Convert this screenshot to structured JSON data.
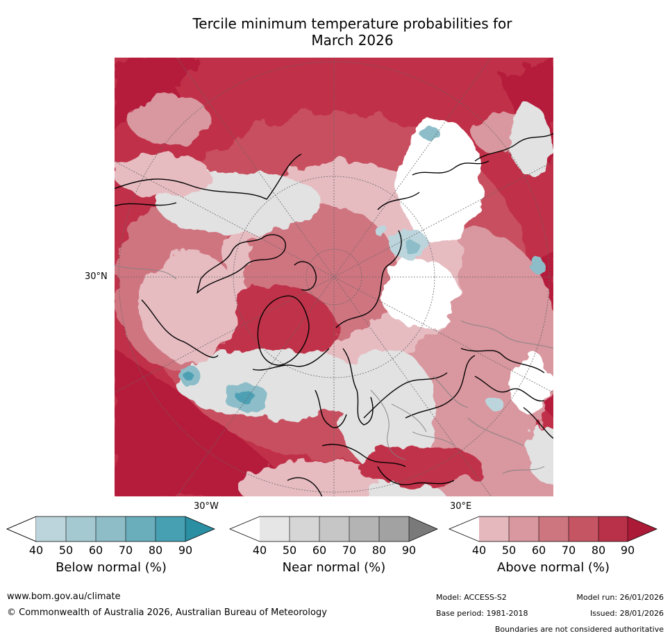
{
  "title": {
    "line1": "Tercile minimum temperature probabilities for",
    "line2": "March 2026"
  },
  "map": {
    "projection": "north-polar-stereographic",
    "lat_label": "30°N",
    "lon_labels": {
      "west": "30°W",
      "east": "30°E"
    },
    "colors": {
      "above_90": "#b51f3a",
      "above_80": "#c03048",
      "above_70": "#c8505e",
      "above_60": "#cf7580",
      "above_50": "#d9979f",
      "above_40": "#e6bcc1",
      "near": "#e2e2e2",
      "near_50": "#d8d8d8",
      "below_40": "#bcd5dc",
      "below_60": "#8cbdc8",
      "below_80": "#4ea0b3",
      "coastline": "#000000",
      "borders": "#808080",
      "gridlines": "#666666"
    }
  },
  "colorbars": [
    {
      "label": "Below normal (%)",
      "ticks": [
        "40",
        "50",
        "60",
        "70",
        "80",
        "90"
      ],
      "colors": [
        "#ffffff",
        "#bcd5dc",
        "#a5c9d1",
        "#8fbdc7",
        "#6aaebc",
        "#46a0b1",
        "#2a8fa3"
      ]
    },
    {
      "label": "Near normal (%)",
      "ticks": [
        "40",
        "50",
        "60",
        "70",
        "80",
        "90"
      ],
      "colors": [
        "#ffffff",
        "#e6e6e6",
        "#d6d6d6",
        "#c6c6c6",
        "#b4b4b4",
        "#a2a2a2",
        "#7a7a7a"
      ]
    },
    {
      "label": "Above normal (%)",
      "ticks": [
        "40",
        "50",
        "60",
        "70",
        "80",
        "90"
      ],
      "colors": [
        "#ffffff",
        "#e4b8bd",
        "#d9979f",
        "#cd7680",
        "#c55563",
        "#b93148",
        "#ab1a36"
      ]
    }
  ],
  "footer": {
    "url": "www.bom.gov.au/climate",
    "copyright": "© Commonwealth of Australia 2026, Australian Bureau of Meteorology",
    "model": "Model: ACCESS-S2",
    "model_run": "Model run: 26/01/2026",
    "base_period": "Base period: 1981-2018",
    "issued": "Issued: 28/01/2026",
    "disclaimer": "Boundaries are not considered authoritative"
  }
}
